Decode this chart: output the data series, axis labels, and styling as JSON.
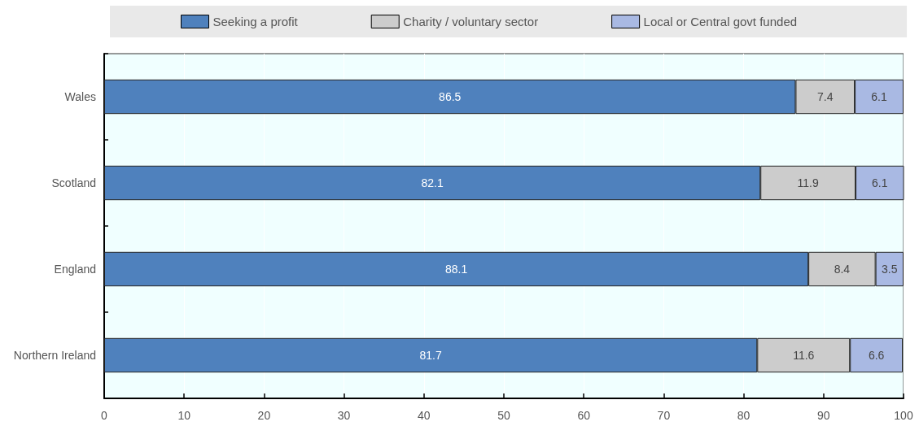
{
  "chart_data": {
    "type": "bar",
    "orientation": "horizontal",
    "stacked": true,
    "categories": [
      "Wales",
      "Scotland",
      "England",
      "Northern Ireland"
    ],
    "series": [
      {
        "name": "Seeking a profit",
        "color": "#4f81bd",
        "values": [
          86.5,
          82.1,
          88.1,
          81.7
        ]
      },
      {
        "name": "Charity / voluntary sector",
        "color": "#cccccc",
        "values": [
          7.4,
          11.9,
          8.4,
          11.6
        ]
      },
      {
        "name": "Local or Central govt funded",
        "color": "#a9b9e3",
        "values": [
          6.1,
          6.1,
          3.5,
          6.6
        ]
      }
    ],
    "xlim": [
      0,
      100
    ],
    "xticks": [
      0,
      10,
      20,
      30,
      40,
      50,
      60,
      70,
      80,
      90,
      100
    ],
    "grid": "x",
    "legend": "top",
    "data_labels": true
  }
}
